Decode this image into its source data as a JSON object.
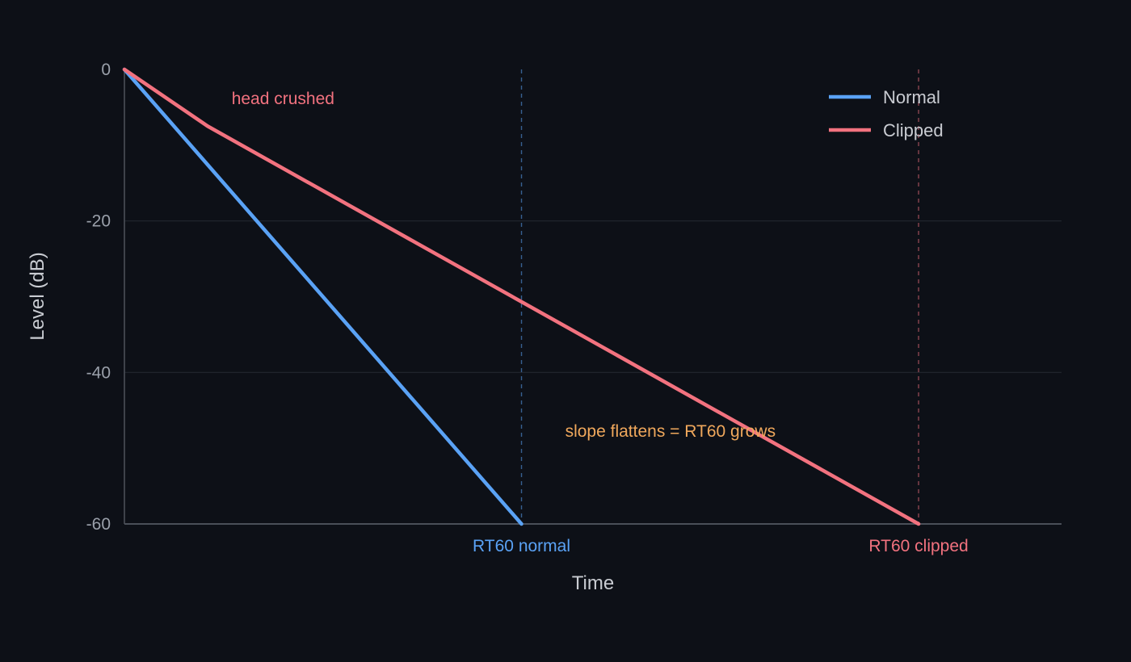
{
  "chart_data": {
    "type": "line",
    "title": "",
    "xlabel": "Time",
    "ylabel": "Level (dB)",
    "xlim": [
      0,
      1.18
    ],
    "ylim": [
      -60,
      0
    ],
    "y_ticks": [
      0,
      -20,
      -40,
      -60
    ],
    "grid": true,
    "legend_position": "top-right",
    "colors": {
      "background": "#0d1017",
      "grid": "#23272f",
      "axis": "#4a4f58",
      "normal": "#5aa2f5",
      "clipped": "#f2727f",
      "annotation_slope": "#f0a85c"
    },
    "series": [
      {
        "name": "Normal",
        "color": "#5aa2f5",
        "x": [
          0,
          0.5
        ],
        "y": [
          0,
          -60
        ]
      },
      {
        "name": "Clipped",
        "color": "#f2727f",
        "x": [
          0,
          0.105,
          1.0
        ],
        "y": [
          0,
          -7.5,
          -60
        ]
      }
    ],
    "markers": [
      {
        "label": "RT60 normal",
        "x": 0.5,
        "color": "#5aa2f5"
      },
      {
        "label": "RT60 clipped",
        "x": 1.0,
        "color": "#f2727f"
      }
    ],
    "annotations": [
      {
        "text": "head crushed",
        "x": 0.135,
        "y": -4.6,
        "color": "#f2727f"
      },
      {
        "text": "slope flattens = RT60 grows",
        "x": 0.555,
        "y": -48.5,
        "color": "#f0a85c"
      }
    ]
  }
}
